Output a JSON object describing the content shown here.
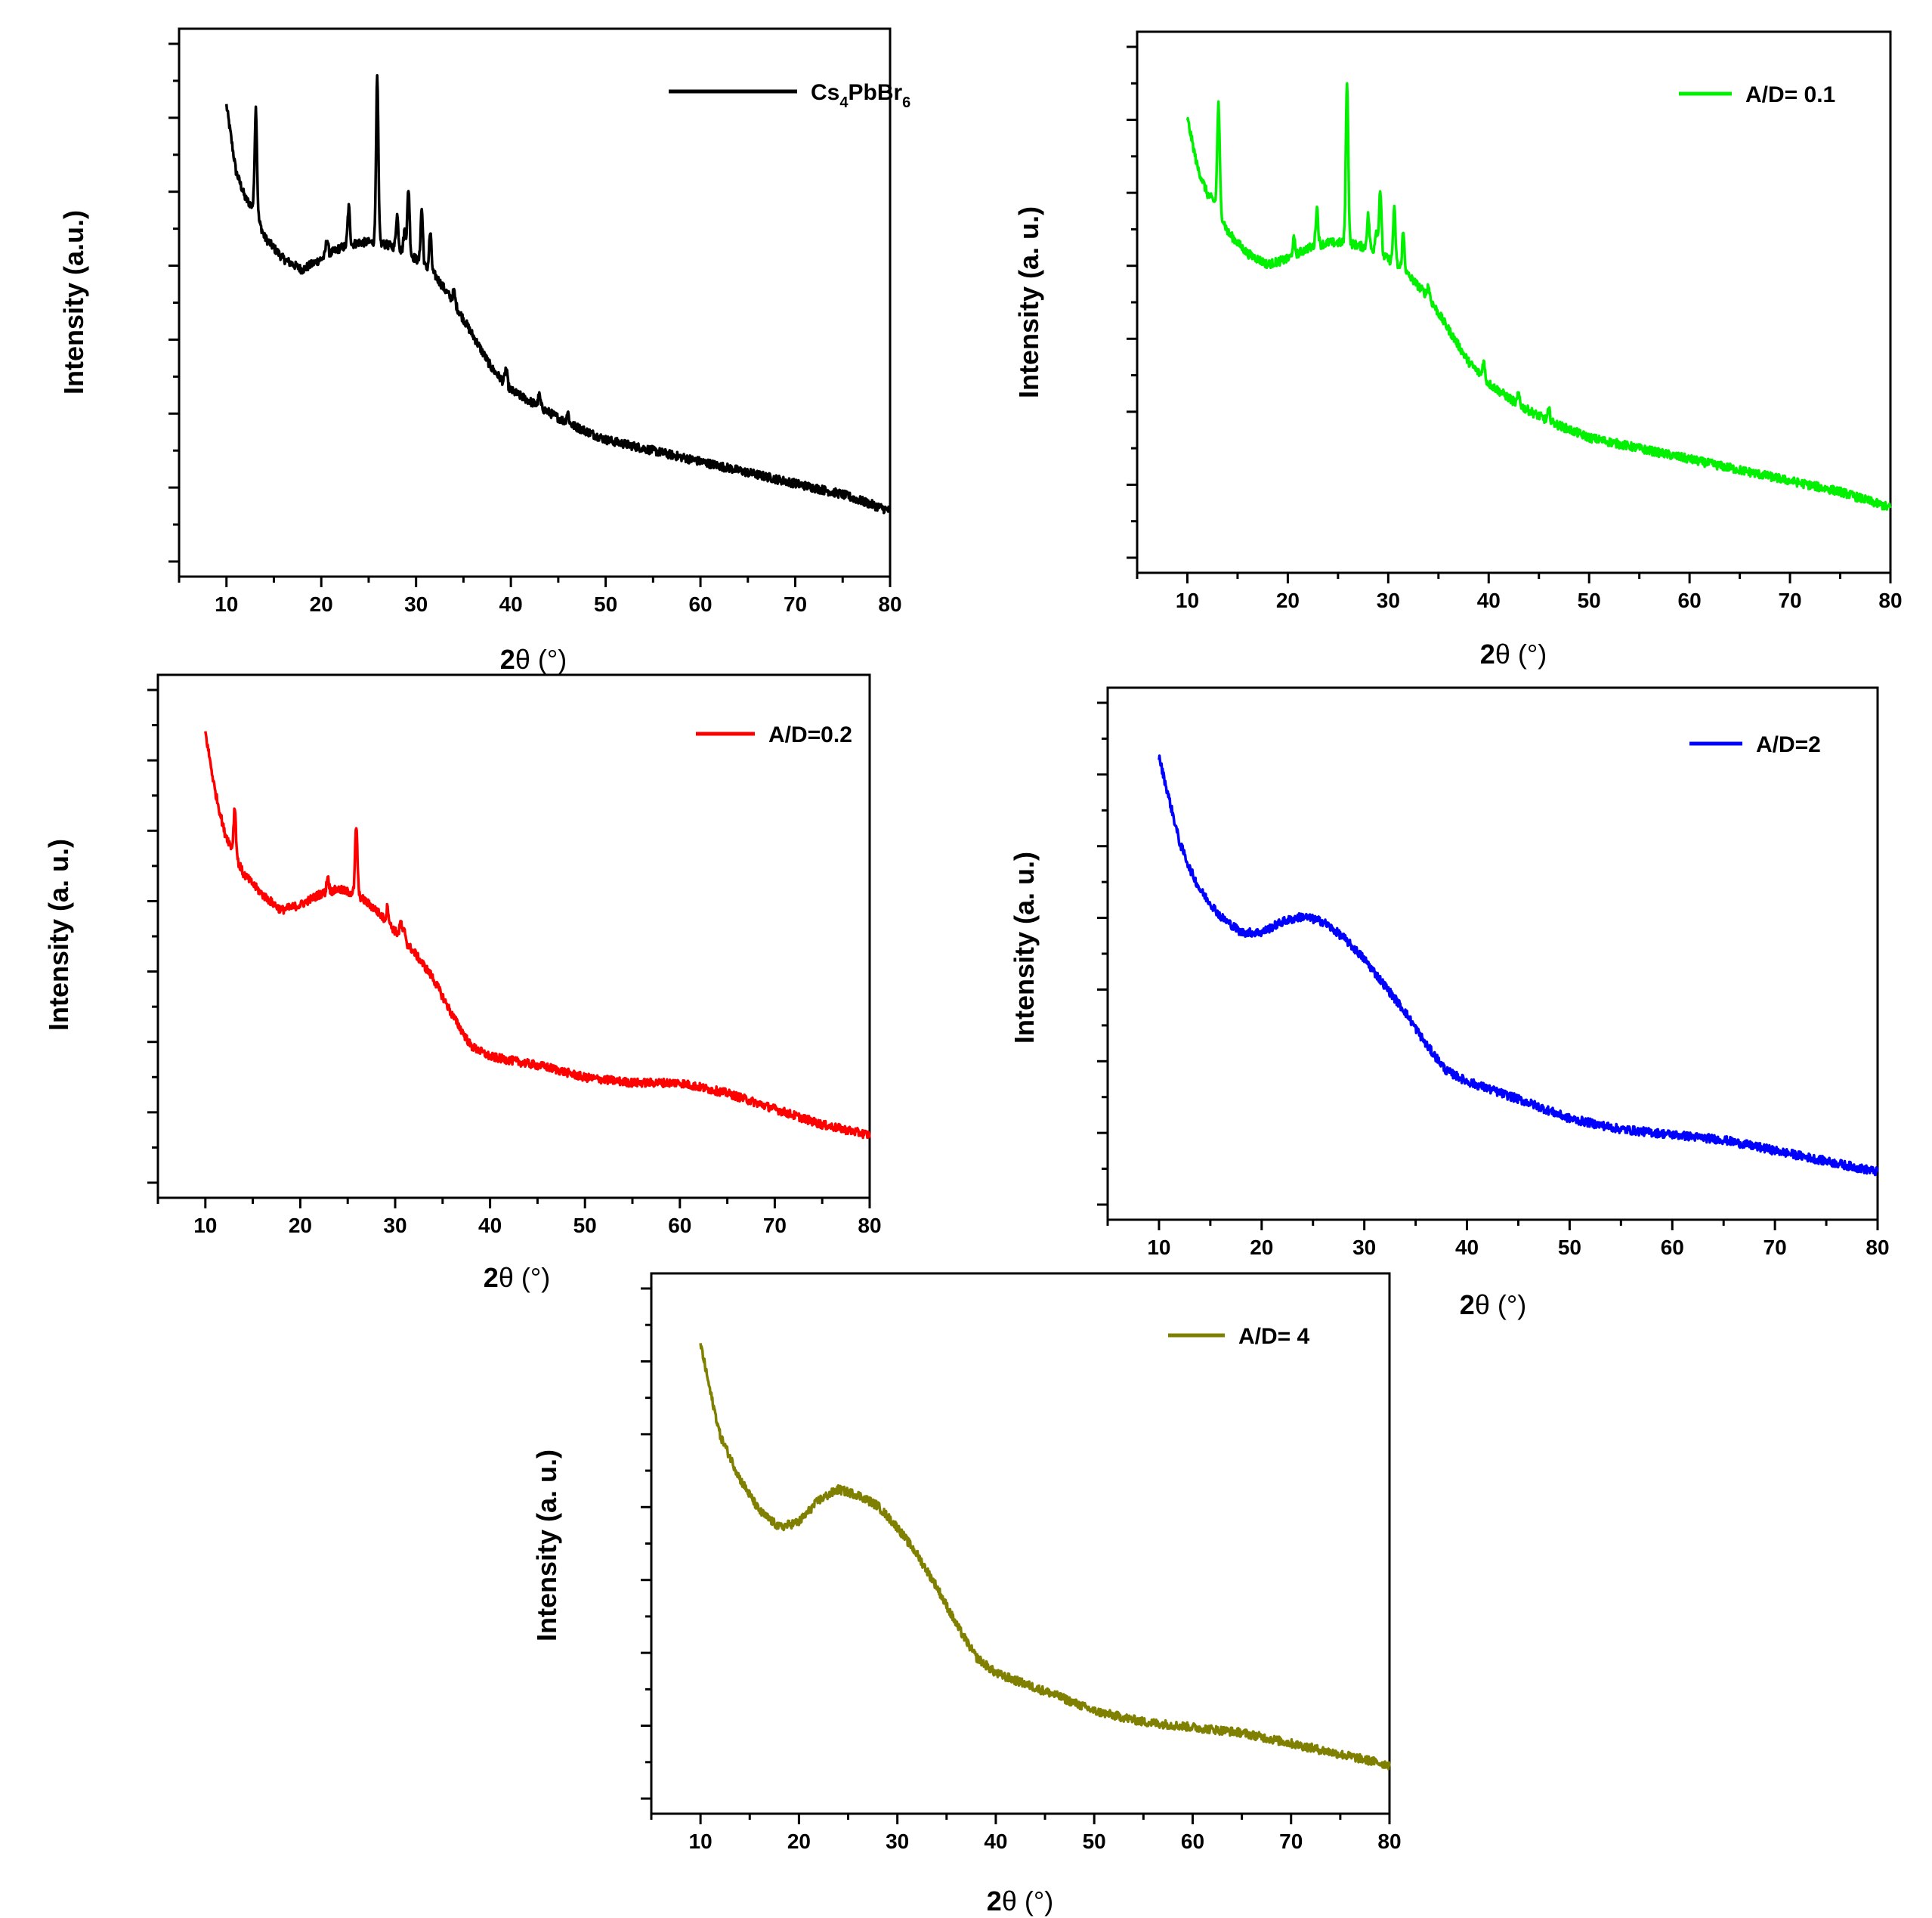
{
  "figure": {
    "background": "#ffffff"
  },
  "chart_data": [
    {
      "type": "line",
      "legend": {
        "label": "Cs",
        "subscript1": "4",
        "mid": "PbBr",
        "subscript2": "6",
        "placement": "top-right"
      },
      "color": "#000000",
      "xlabel": {
        "prefix": "2",
        "symbol": "θ",
        "unit": " (°)"
      },
      "ylabel": "Intensity (a.u.)",
      "xlim": [
        5,
        80
      ],
      "ylim": [
        0,
        100
      ],
      "xticks": [
        10,
        20,
        30,
        40,
        50,
        60,
        70,
        80
      ],
      "baseline": [
        [
          10,
          86
        ],
        [
          11,
          74
        ],
        [
          12,
          69
        ],
        [
          13,
          67
        ],
        [
          14,
          62
        ],
        [
          16,
          58
        ],
        [
          18,
          56
        ],
        [
          20,
          58
        ],
        [
          22,
          60
        ],
        [
          24,
          61
        ],
        [
          26,
          61
        ],
        [
          28,
          60
        ],
        [
          30,
          58
        ],
        [
          32,
          55
        ],
        [
          34,
          50
        ],
        [
          36,
          44
        ],
        [
          38,
          38
        ],
        [
          40,
          34
        ],
        [
          43,
          31
        ],
        [
          46,
          28
        ],
        [
          50,
          25
        ],
        [
          55,
          23
        ],
        [
          60,
          21
        ],
        [
          65,
          19
        ],
        [
          70,
          17
        ],
        [
          75,
          15
        ],
        [
          80,
          12
        ]
      ],
      "peaks": [
        {
          "x": 13.1,
          "h": 19
        },
        {
          "x": 20.6,
          "h": 3
        },
        {
          "x": 22.9,
          "h": 7
        },
        {
          "x": 25.9,
          "h": 30
        },
        {
          "x": 28.0,
          "h": 6
        },
        {
          "x": 28.8,
          "h": 4
        },
        {
          "x": 29.2,
          "h": 12
        },
        {
          "x": 30.6,
          "h": 10
        },
        {
          "x": 31.5,
          "h": 7
        },
        {
          "x": 34.0,
          "h": 2
        },
        {
          "x": 39.5,
          "h": 3
        },
        {
          "x": 43.0,
          "h": 2
        },
        {
          "x": 46.0,
          "h": 2
        }
      ],
      "noise": 0.8
    },
    {
      "type": "line",
      "legend": {
        "label": "A/D= 0.1",
        "placement": "top-right"
      },
      "color": "#00f000",
      "xlabel": {
        "prefix": "2",
        "symbol": "θ",
        "unit": " (°)"
      },
      "ylabel": "Intensity (a. u.)",
      "xlim": [
        5,
        80
      ],
      "ylim": [
        0,
        100
      ],
      "xticks": [
        10,
        20,
        30,
        40,
        50,
        60,
        70,
        80
      ],
      "baseline": [
        [
          10,
          84
        ],
        [
          11,
          75
        ],
        [
          12,
          70
        ],
        [
          13,
          68
        ],
        [
          14,
          63
        ],
        [
          16,
          59
        ],
        [
          18,
          57
        ],
        [
          20,
          58
        ],
        [
          22,
          60
        ],
        [
          24,
          61
        ],
        [
          26,
          61
        ],
        [
          28,
          60
        ],
        [
          30,
          58
        ],
        [
          32,
          55
        ],
        [
          34,
          51
        ],
        [
          36,
          45
        ],
        [
          38,
          39
        ],
        [
          40,
          35
        ],
        [
          43,
          31
        ],
        [
          46,
          28
        ],
        [
          50,
          25
        ],
        [
          55,
          23
        ],
        [
          60,
          21
        ],
        [
          65,
          19
        ],
        [
          70,
          17
        ],
        [
          75,
          15
        ],
        [
          80,
          12
        ]
      ],
      "peaks": [
        {
          "x": 13.1,
          "h": 19
        },
        {
          "x": 20.6,
          "h": 3
        },
        {
          "x": 22.9,
          "h": 7
        },
        {
          "x": 25.9,
          "h": 30
        },
        {
          "x": 28.0,
          "h": 6
        },
        {
          "x": 28.8,
          "h": 4
        },
        {
          "x": 29.2,
          "h": 12
        },
        {
          "x": 30.6,
          "h": 10
        },
        {
          "x": 31.5,
          "h": 7
        },
        {
          "x": 34.0,
          "h": 2
        },
        {
          "x": 39.5,
          "h": 3
        },
        {
          "x": 43.0,
          "h": 2
        },
        {
          "x": 46.0,
          "h": 2
        }
      ],
      "noise": 0.8
    },
    {
      "type": "line",
      "legend": {
        "label": "A/D=0.2",
        "placement": "top-right"
      },
      "color": "#ff0000",
      "xlabel": {
        "prefix": "2",
        "symbol": "θ",
        "unit": " (°)"
      },
      "ylabel": "Intensity (a. u.)",
      "xlim": [
        5,
        80
      ],
      "ylim": [
        0,
        100
      ],
      "xticks": [
        10,
        20,
        30,
        40,
        50,
        60,
        70,
        80
      ],
      "baseline": [
        [
          10,
          89
        ],
        [
          11,
          78
        ],
        [
          12,
          70
        ],
        [
          13,
          66
        ],
        [
          14,
          62
        ],
        [
          16,
          58
        ],
        [
          18,
          55
        ],
        [
          20,
          56
        ],
        [
          22,
          58
        ],
        [
          24,
          59
        ],
        [
          26,
          58
        ],
        [
          28,
          55
        ],
        [
          30,
          51
        ],
        [
          32,
          47
        ],
        [
          34,
          42
        ],
        [
          36,
          35
        ],
        [
          38,
          29
        ],
        [
          40,
          27
        ],
        [
          43,
          26
        ],
        [
          46,
          25
        ],
        [
          50,
          23
        ],
        [
          55,
          22
        ],
        [
          60,
          22
        ],
        [
          65,
          20
        ],
        [
          70,
          17
        ],
        [
          75,
          14
        ],
        [
          80,
          12
        ]
      ],
      "peaks": [
        {
          "x": 13.1,
          "h": 9
        },
        {
          "x": 22.9,
          "h": 3
        },
        {
          "x": 25.9,
          "h": 13
        },
        {
          "x": 29.2,
          "h": 3
        },
        {
          "x": 30.6,
          "h": 3
        },
        {
          "x": 31.0,
          "h": 2
        }
      ],
      "noise": 0.8
    },
    {
      "type": "line",
      "legend": {
        "label": "A/D=2",
        "placement": "top-right"
      },
      "color": "#0000ff",
      "xlabel": {
        "prefix": "2",
        "symbol": "θ",
        "unit": " (°)"
      },
      "ylabel": "Intensity (a. u.)",
      "xlim": [
        5,
        80
      ],
      "ylim": [
        0,
        100
      ],
      "xticks": [
        10,
        20,
        30,
        40,
        50,
        60,
        70,
        80
      ],
      "baseline": [
        [
          10,
          87
        ],
        [
          11,
          79
        ],
        [
          12,
          71
        ],
        [
          13,
          66
        ],
        [
          14,
          62
        ],
        [
          16,
          57
        ],
        [
          18,
          54
        ],
        [
          20,
          54
        ],
        [
          22,
          56
        ],
        [
          24,
          57
        ],
        [
          26,
          56
        ],
        [
          28,
          53
        ],
        [
          30,
          49
        ],
        [
          32,
          44
        ],
        [
          34,
          39
        ],
        [
          36,
          33
        ],
        [
          38,
          28
        ],
        [
          40,
          26
        ],
        [
          43,
          24
        ],
        [
          46,
          22
        ],
        [
          50,
          19
        ],
        [
          55,
          17
        ],
        [
          60,
          16
        ],
        [
          65,
          15
        ],
        [
          70,
          13
        ],
        [
          75,
          11
        ],
        [
          80,
          9
        ]
      ],
      "peaks": [],
      "noise": 0.8
    },
    {
      "type": "line",
      "legend": {
        "label": "A/D= 4",
        "placement": "top-right"
      },
      "color": "#808000",
      "xlabel": {
        "prefix": "2",
        "symbol": "θ",
        "unit": " (°)"
      },
      "ylabel": "Intensity (a. u.)",
      "xlim": [
        5,
        80
      ],
      "ylim": [
        0,
        100
      ],
      "xticks": [
        10,
        20,
        30,
        40,
        50,
        60,
        70,
        80
      ],
      "baseline": [
        [
          10,
          87
        ],
        [
          11,
          78
        ],
        [
          12,
          70
        ],
        [
          13,
          66
        ],
        [
          14,
          62
        ],
        [
          16,
          56
        ],
        [
          18,
          53
        ],
        [
          20,
          54
        ],
        [
          22,
          58
        ],
        [
          24,
          60
        ],
        [
          26,
          59
        ],
        [
          28,
          57
        ],
        [
          30,
          53
        ],
        [
          32,
          48
        ],
        [
          34,
          42
        ],
        [
          36,
          35
        ],
        [
          38,
          29
        ],
        [
          40,
          26
        ],
        [
          43,
          24
        ],
        [
          46,
          22
        ],
        [
          50,
          19
        ],
        [
          55,
          17
        ],
        [
          60,
          16
        ],
        [
          65,
          15
        ],
        [
          70,
          13
        ],
        [
          75,
          11
        ],
        [
          80,
          9
        ]
      ],
      "peaks": [],
      "noise": 0.8
    }
  ]
}
